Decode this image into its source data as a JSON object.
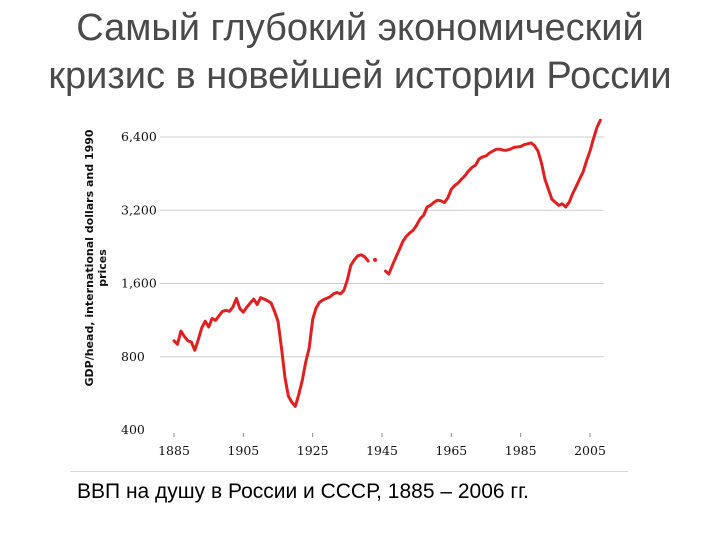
{
  "slide": {
    "title_line1": "Самый глубокий экономический",
    "title_line2": "кризис в новейшей истории России",
    "caption": "ВВП на душу в России и СССР, 1885 – 2006 гг."
  },
  "colors": {
    "line": "#e02020",
    "grid": "#cfcfcf",
    "title": "#4a4a4a"
  },
  "chart_data": {
    "type": "line",
    "title": "",
    "ylabel_line1": "GDP/head, international dollars and 1990",
    "ylabel_line2": "prices",
    "xlabel": "",
    "yscale": "log2",
    "ylim": [
      400,
      7600
    ],
    "xlim": [
      1885,
      2008
    ],
    "yticks": [
      400,
      800,
      1600,
      3200,
      6400
    ],
    "ytick_labels": [
      "400",
      "800",
      "1,600",
      "3,200",
      "6,400"
    ],
    "xticks": [
      1885,
      1905,
      1925,
      1945,
      1965,
      1985,
      2005
    ],
    "xtick_labels": [
      "1885",
      "1905",
      "1925",
      "1945",
      "1965",
      "1985",
      "2005"
    ],
    "grid": true,
    "series": [
      {
        "name": "",
        "segments": [
          [
            [
              1885,
              930
            ],
            [
              1886,
              900
            ],
            [
              1887,
              1020
            ],
            [
              1888,
              970
            ],
            [
              1889,
              930
            ],
            [
              1890,
              920
            ],
            [
              1891,
              850
            ],
            [
              1892,
              940
            ],
            [
              1893,
              1050
            ],
            [
              1894,
              1120
            ],
            [
              1895,
              1060
            ],
            [
              1896,
              1150
            ],
            [
              1897,
              1130
            ],
            [
              1898,
              1180
            ],
            [
              1899,
              1230
            ],
            [
              1900,
              1240
            ],
            [
              1901,
              1230
            ],
            [
              1902,
              1280
            ],
            [
              1903,
              1390
            ],
            [
              1904,
              1260
            ],
            [
              1905,
              1220
            ],
            [
              1906,
              1280
            ],
            [
              1907,
              1330
            ],
            [
              1908,
              1380
            ],
            [
              1909,
              1310
            ],
            [
              1910,
              1400
            ],
            [
              1911,
              1380
            ],
            [
              1912,
              1360
            ],
            [
              1913,
              1330
            ],
            [
              1914,
              1230
            ],
            [
              1915,
              1120
            ],
            [
              1916,
              870
            ],
            [
              1917,
              660
            ],
            [
              1918,
              550
            ],
            [
              1919,
              520
            ],
            [
              1920,
              500
            ],
            [
              1921,
              560
            ],
            [
              1922,
              640
            ],
            [
              1923,
              760
            ],
            [
              1924,
              870
            ],
            [
              1925,
              1140
            ],
            [
              1926,
              1270
            ],
            [
              1927,
              1340
            ],
            [
              1928,
              1370
            ],
            [
              1929,
              1390
            ],
            [
              1930,
              1410
            ],
            [
              1931,
              1450
            ],
            [
              1932,
              1470
            ],
            [
              1933,
              1450
            ],
            [
              1934,
              1500
            ],
            [
              1935,
              1650
            ],
            [
              1936,
              1900
            ],
            [
              1937,
              2000
            ],
            [
              1938,
              2080
            ],
            [
              1939,
              2100
            ],
            [
              1940,
              2060
            ],
            [
              1941,
              1980
            ]
          ],
          [
            [
              1943,
              2000
            ]
          ],
          [
            [
              1946,
              1800
            ],
            [
              1947,
              1750
            ],
            [
              1948,
              1900
            ],
            [
              1949,
              2050
            ],
            [
              1950,
              2200
            ],
            [
              1951,
              2380
            ],
            [
              1952,
              2500
            ],
            [
              1953,
              2580
            ],
            [
              1954,
              2650
            ],
            [
              1955,
              2780
            ],
            [
              1956,
              2950
            ],
            [
              1957,
              3050
            ],
            [
              1958,
              3300
            ],
            [
              1959,
              3350
            ],
            [
              1960,
              3450
            ],
            [
              1961,
              3520
            ],
            [
              1962,
              3500
            ],
            [
              1963,
              3440
            ],
            [
              1964,
              3600
            ],
            [
              1965,
              3900
            ],
            [
              1966,
              4050
            ],
            [
              1967,
              4150
            ],
            [
              1968,
              4300
            ],
            [
              1969,
              4450
            ],
            [
              1970,
              4650
            ],
            [
              1971,
              4800
            ],
            [
              1972,
              4900
            ],
            [
              1973,
              5200
            ],
            [
              1974,
              5300
            ],
            [
              1975,
              5350
            ],
            [
              1976,
              5500
            ],
            [
              1977,
              5600
            ],
            [
              1978,
              5700
            ],
            [
              1979,
              5700
            ],
            [
              1980,
              5650
            ],
            [
              1981,
              5650
            ],
            [
              1982,
              5700
            ],
            [
              1983,
              5800
            ],
            [
              1984,
              5820
            ],
            [
              1985,
              5850
            ],
            [
              1986,
              5950
            ],
            [
              1987,
              6000
            ],
            [
              1988,
              6050
            ],
            [
              1989,
              5900
            ],
            [
              1990,
              5600
            ],
            [
              1991,
              5000
            ],
            [
              1992,
              4300
            ],
            [
              1993,
              3900
            ],
            [
              1994,
              3550
            ],
            [
              1995,
              3450
            ],
            [
              1996,
              3350
            ],
            [
              1997,
              3400
            ],
            [
              1998,
              3300
            ],
            [
              1999,
              3450
            ],
            [
              2000,
              3750
            ],
            [
              2001,
              4000
            ],
            [
              2002,
              4300
            ],
            [
              2003,
              4600
            ],
            [
              2004,
              5100
            ],
            [
              2005,
              5600
            ],
            [
              2006,
              6300
            ],
            [
              2007,
              7000
            ],
            [
              2008,
              7500
            ]
          ]
        ]
      }
    ]
  }
}
